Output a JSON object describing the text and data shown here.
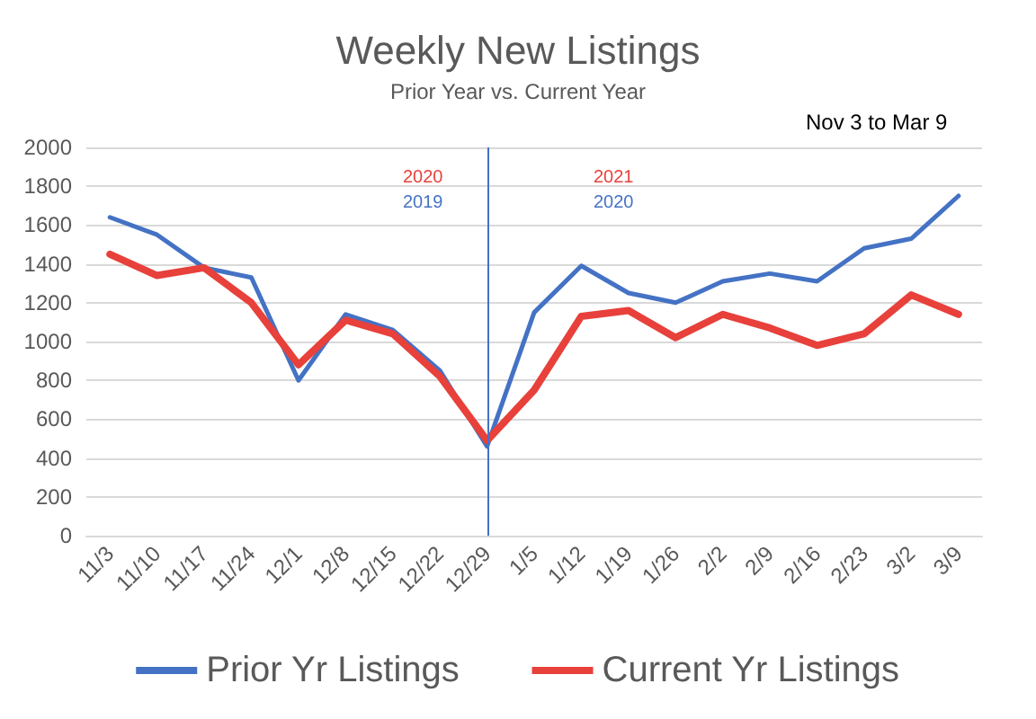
{
  "chart_data": {
    "type": "line",
    "title": "Weekly New Listings",
    "subtitle": "Prior Year vs. Current Year",
    "categories": [
      "11/3",
      "11/10",
      "11/17",
      "11/24",
      "12/1",
      "12/8",
      "12/15",
      "12/22",
      "12/29",
      "1/5",
      "1/12",
      "1/19",
      "1/26",
      "2/2",
      "2/9",
      "2/16",
      "2/23",
      "3/2",
      "3/9"
    ],
    "series": [
      {
        "name": "Prior Yr Listings",
        "color": "#4472c4",
        "values": [
          1640,
          1550,
          1380,
          1330,
          800,
          1140,
          1060,
          850,
          460,
          1150,
          1390,
          1250,
          1200,
          1310,
          1350,
          1310,
          1480,
          1530,
          1750
        ]
      },
      {
        "name": "Current Yr Listings",
        "color": "#e8403a",
        "values": [
          1450,
          1340,
          1380,
          1200,
          880,
          1110,
          1040,
          820,
          490,
          750,
          1130,
          1160,
          1020,
          1140,
          1070,
          980,
          1040,
          1240,
          1140
        ]
      }
    ],
    "annotations": [
      "2020",
      "2019",
      "2021",
      "2020",
      "Nov 3 to Mar 9"
    ],
    "ref_lines": [
      {
        "axis": "x",
        "value": "12/29",
        "color": "#4472c4"
      }
    ],
    "ylim": [
      0,
      2000
    ],
    "yticks": [
      0,
      200,
      400,
      600,
      800,
      1000,
      1200,
      1400,
      1600,
      1800,
      2000
    ],
    "grid": "y",
    "legend": "bottom",
    "marker": "none",
    "line_style": "solid"
  }
}
